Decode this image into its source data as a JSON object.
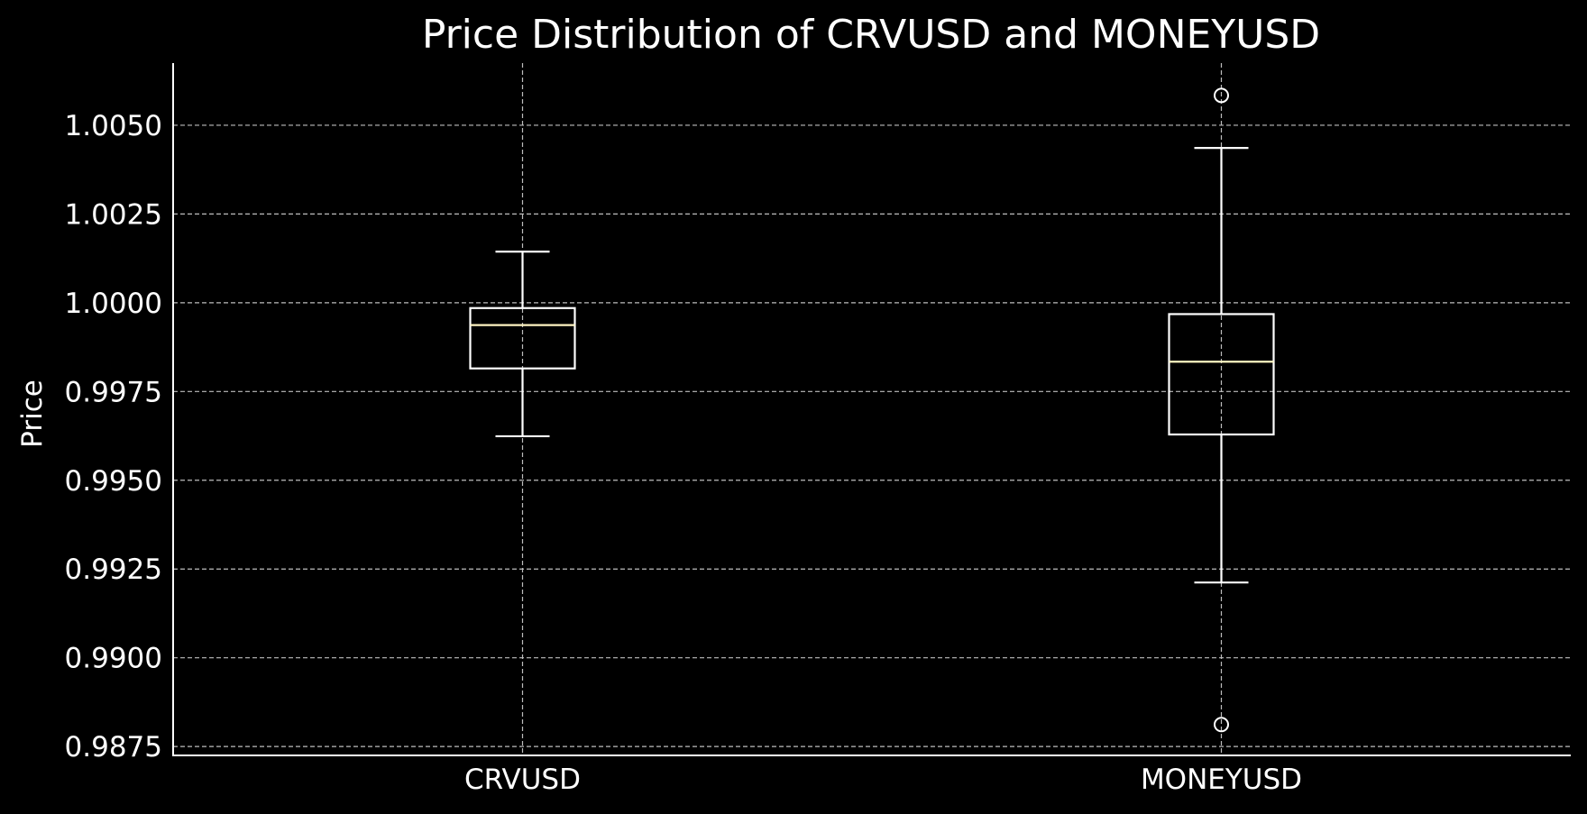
{
  "chart_data": {
    "type": "box",
    "title": "Price Distribution of CRVUSD and MONEYUSD",
    "xlabel": "",
    "ylabel": "Price",
    "categories": [
      "CRVUSD",
      "MONEYUSD"
    ],
    "ylim": [
      0.98725,
      1.00675
    ],
    "yticks": [
      0.9875,
      0.99,
      0.9925,
      0.995,
      0.9975,
      1.0,
      1.0025,
      1.005
    ],
    "ytick_labels": [
      "0.9875",
      "0.9900",
      "0.9925",
      "0.9950",
      "0.9975",
      "1.0000",
      "1.0025",
      "1.0050"
    ],
    "grid": true,
    "series": [
      {
        "category": "CRVUSD",
        "whisker_low": 0.99624,
        "q1": 0.99815,
        "median": 0.99937,
        "q3": 0.99985,
        "whisker_high": 1.00144,
        "outliers": []
      },
      {
        "category": "MONEYUSD",
        "whisker_low": 0.99212,
        "q1": 0.99629,
        "median": 0.99834,
        "q3": 0.99968,
        "whisker_high": 1.00436,
        "outliers": [
          1.00584,
          0.98812
        ]
      }
    ],
    "colors": {
      "background": "#000000",
      "box": "#ffffff",
      "median": "#fff5c2",
      "grid": "#bdbdbd",
      "text": "#ffffff"
    }
  }
}
